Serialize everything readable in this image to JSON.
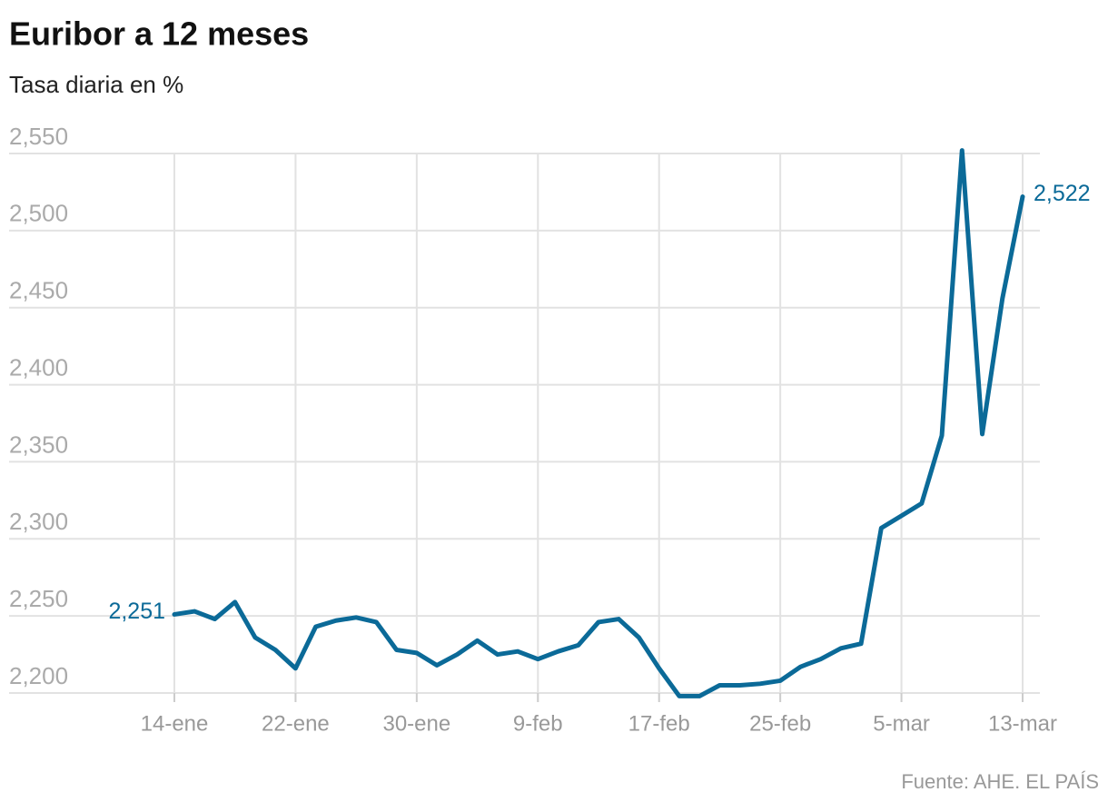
{
  "chart_data": {
    "type": "line",
    "title": "Euribor a 12 meses",
    "subtitle": "Tasa diaria en %",
    "source": "Fuente: AHE. EL PAÍS",
    "categories": [
      "14-ene",
      null,
      null,
      null,
      null,
      null,
      "22-ene",
      null,
      null,
      null,
      null,
      null,
      "30-ene",
      null,
      null,
      null,
      null,
      null,
      "9-feb",
      null,
      null,
      null,
      null,
      null,
      "17-feb",
      null,
      null,
      null,
      null,
      null,
      "25-feb",
      null,
      null,
      null,
      null,
      null,
      "5-mar",
      null,
      null,
      null,
      null,
      null,
      "13-mar"
    ],
    "values": [
      2.251,
      2.253,
      2.248,
      2.259,
      2.236,
      2.228,
      2.216,
      2.243,
      2.247,
      2.249,
      2.246,
      2.228,
      2.226,
      2.218,
      2.225,
      2.234,
      2.225,
      2.227,
      2.222,
      2.227,
      2.231,
      2.246,
      2.248,
      2.236,
      2.216,
      2.198,
      2.198,
      2.205,
      2.205,
      2.206,
      2.208,
      2.217,
      2.222,
      2.229,
      2.232,
      2.307,
      2.315,
      2.323,
      2.367,
      2.552,
      2.368,
      2.456,
      2.522
    ],
    "value_labels": [
      "2,251",
      null,
      null,
      null,
      null,
      null,
      null,
      null,
      null,
      null,
      null,
      null,
      null,
      null,
      null,
      null,
      null,
      null,
      null,
      null,
      null,
      null,
      null,
      null,
      null,
      null,
      null,
      null,
      null,
      null,
      null,
      null,
      null,
      null,
      null,
      null,
      null,
      null,
      null,
      null,
      null,
      null,
      "2,522"
    ],
    "color": "#0b6a98",
    "ylim": [
      2.2,
      2.55
    ],
    "yticks": [
      {
        "value": 2.2,
        "label": "2,200"
      },
      {
        "value": 2.25,
        "label": "2,250"
      },
      {
        "value": 2.3,
        "label": "2,300"
      },
      {
        "value": 2.35,
        "label": "2,350"
      },
      {
        "value": 2.4,
        "label": "2,400"
      },
      {
        "value": 2.45,
        "label": "2,450"
      },
      {
        "value": 2.5,
        "label": "2,500"
      },
      {
        "value": 2.55,
        "label": "2,550"
      }
    ],
    "grid": true
  }
}
